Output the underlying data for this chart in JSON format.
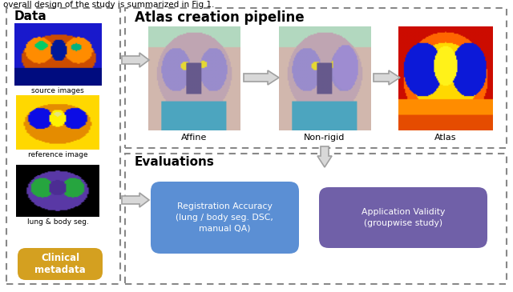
{
  "title_text": "Atlas creation pipeline",
  "data_label": "Data",
  "eval_label": "Evaluations",
  "affine_label": "Affine",
  "nonrigid_label": "Non-rigid",
  "atlas_label": "Atlas",
  "source_label": "source images",
  "reference_label": "reference image",
  "lung_label": "lung & body seg.",
  "clinical_label": "Clinical\nmetadata",
  "reg_acc_label": "Registration Accuracy\n(lung / body seg. DSC,\nmanual QA)",
  "app_val_label": "Application Validity\n(groupwise study)",
  "reg_btn_color": "#5b8fd4",
  "app_btn_color": "#7060a8",
  "clinical_btn_color": "#d4a020",
  "arrow_fill": "#d8d8d8",
  "arrow_edge": "#a0a0a0",
  "dashed_color": "#888888",
  "top_text": "overall design of the study is summarized in Fig 1."
}
